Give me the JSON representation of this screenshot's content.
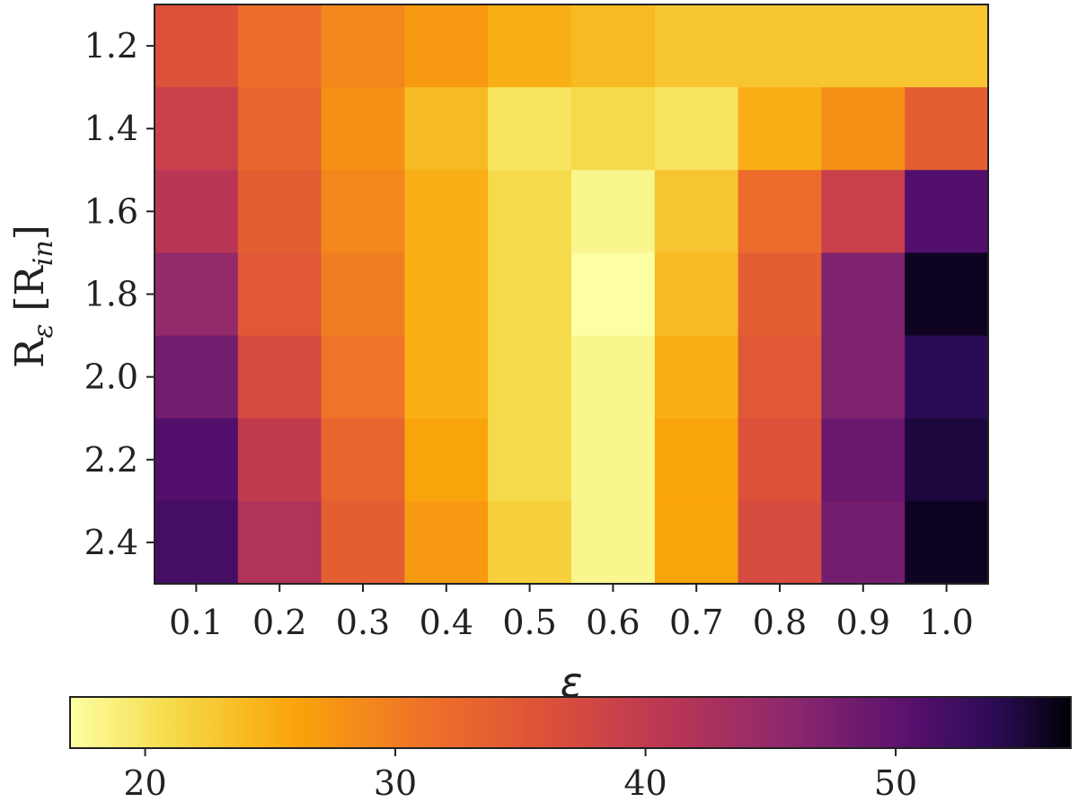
{
  "chart_data": {
    "type": "heatmap",
    "title": "",
    "xlabel": "ε",
    "ylabel_main": "R",
    "ylabel_subscript": "ε",
    "ylabel_bracket_open": " [R",
    "ylabel_bracket_subscript": "in",
    "ylabel_bracket_close": "]",
    "x_categories": [
      "0.1",
      "0.2",
      "0.3",
      "0.4",
      "0.5",
      "0.6",
      "0.7",
      "0.8",
      "0.9",
      "1.0"
    ],
    "y_categories": [
      "1.2",
      "1.4",
      "1.6",
      "1.8",
      "2.0",
      "2.2",
      "2.4"
    ],
    "values": [
      [
        36,
        32,
        29,
        27,
        25,
        24,
        23,
        23,
        23,
        23
      ],
      [
        39,
        33,
        28,
        24,
        20,
        21,
        20,
        25,
        28,
        34
      ],
      [
        41,
        34,
        29,
        25,
        21,
        18,
        23,
        32,
        39,
        51
      ],
      [
        45,
        35,
        30,
        25,
        21,
        17,
        24,
        34,
        47,
        56
      ],
      [
        48,
        37,
        31,
        25,
        21,
        18,
        25,
        35,
        47,
        54
      ],
      [
        51,
        40,
        33,
        26,
        21,
        18,
        26,
        36,
        49,
        55
      ],
      [
        52,
        42,
        34,
        27,
        22,
        18,
        26,
        37,
        48,
        56
      ]
    ],
    "colorbar": {
      "label": "",
      "range": [
        17,
        57
      ],
      "ticks": [
        "20",
        "30",
        "40",
        "50"
      ],
      "tick_values": [
        20,
        30,
        40,
        50
      ],
      "colormap": "inferno_r",
      "orientation": "horizontal",
      "placement": "bottom"
    },
    "grid": false,
    "legend": "none"
  }
}
